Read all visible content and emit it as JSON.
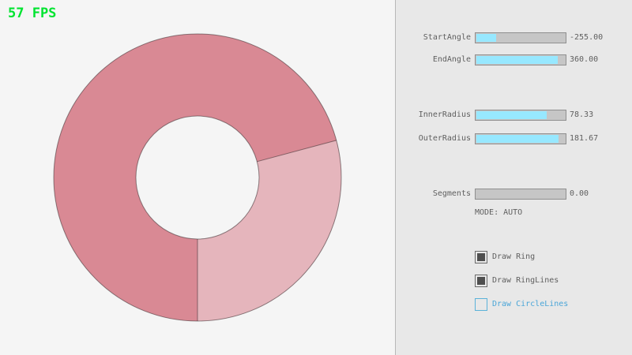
{
  "fps_label": "57 FPS",
  "ring": {
    "fill_dark": "#d98994",
    "fill_light": "#e5b5bc",
    "line_color": "rgba(40,32,34,0.5)"
  },
  "panel": {
    "sliders": [
      {
        "label": "StartAngle",
        "value": "-255.00",
        "fill_pct": 21.7
      },
      {
        "label": "EndAngle",
        "value": "360.00",
        "fill_pct": 90
      },
      {
        "label": "InnerRadius",
        "value": "78.33",
        "fill_pct": 78.3
      },
      {
        "label": "OuterRadius",
        "value": "181.67",
        "fill_pct": 90.8
      },
      {
        "label": "Segments",
        "value": "0.00",
        "fill_pct": 0
      }
    ],
    "mode_text": "MODE: AUTO",
    "checkboxes": [
      {
        "label": "Draw Ring",
        "checked": true,
        "focused": false
      },
      {
        "label": "Draw RingLines",
        "checked": true,
        "focused": false
      },
      {
        "label": "Draw CircleLines",
        "checked": false,
        "focused": true
      }
    ]
  },
  "colors": {
    "fps_green": "#00e430",
    "slider_fill": "#97e8ff",
    "slider_base": "#c6c6c6",
    "text_gray": "#5f5f5f",
    "accent_blue": "#5bb2d9",
    "panel_bg": "#e8e8e8",
    "canvas_bg": "#f5f5f5"
  }
}
